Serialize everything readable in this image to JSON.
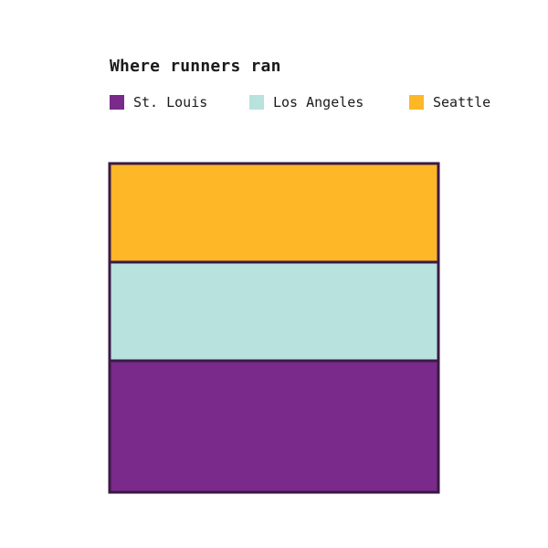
{
  "chart_data": {
    "type": "waffle",
    "title": "Where runners ran",
    "grid": false,
    "legend_placement": "top",
    "total_units": 100,
    "categories": [
      "St. Louis",
      "Los Angeles",
      "Seattle"
    ],
    "series": [
      {
        "name": "St. Louis",
        "value": 40,
        "color": "#7a2a8a"
      },
      {
        "name": "Los Angeles",
        "value": 30,
        "color": "#b8e2dd"
      },
      {
        "name": "Seattle",
        "value": 30,
        "color": "#fdb727"
      }
    ],
    "outline_color": "#3a1a45"
  }
}
